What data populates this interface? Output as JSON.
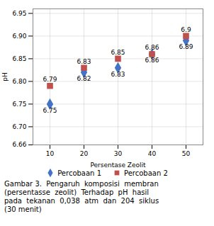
{
  "chart_data": {
    "type": "scatter",
    "x": [
      10,
      20,
      30,
      40,
      50
    ],
    "series": [
      {
        "name": "Percobaan 1",
        "color": "#4472C4",
        "marker": "diamond",
        "values": [
          6.75,
          6.82,
          6.83,
          6.86,
          6.89
        ]
      },
      {
        "name": "Percobaan 2",
        "color": "#C0504D",
        "marker": "square",
        "values": [
          6.79,
          6.83,
          6.85,
          6.86,
          6.9
        ]
      }
    ],
    "xlabel": "Persentase Zeolit",
    "ylabel": "pH",
    "xlim": [
      5,
      55
    ],
    "xticks": [
      10,
      20,
      30,
      40,
      50
    ],
    "ylim": [
      6.66,
      6.96
    ],
    "yticks": [
      6.66,
      {
        "value": 6.7,
        "label": "6.70"
      },
      6.75,
      {
        "value": 6.8,
        "label": "6.80"
      },
      6.85,
      {
        "value": 6.9,
        "label": "6.90"
      },
      6.95
    ],
    "grid": true,
    "legend": "bottom",
    "data_labels": true,
    "caption": "Gambar 3.  Pengaruh  komposisi  membran\n(persentasse  zeolit)  Terhadap  pH  hasil\npada  tekanan  0,038  atm  dan  204  siklus\n(30 menit)"
  }
}
